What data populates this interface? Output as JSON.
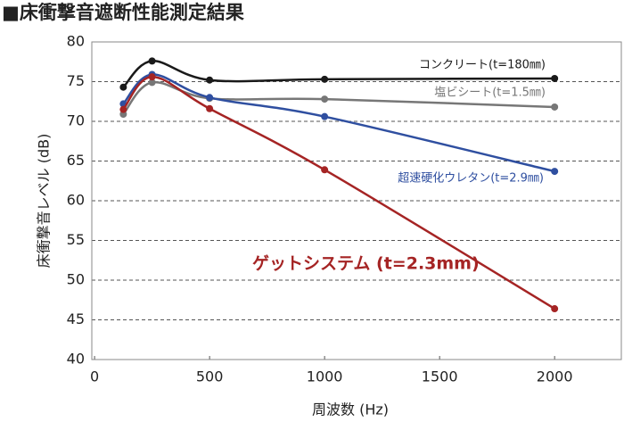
{
  "chart_data": {
    "type": "line",
    "title": "■床衝撃音遮断性能測定結果",
    "x_label": "周波数 (Hz)",
    "y_label": "床衝撃音レベル (dB)",
    "x": [
      125,
      250,
      500,
      1000,
      2000
    ],
    "xlim": [
      -12,
      2290
    ],
    "xticks": [
      0,
      500,
      1000,
      1500,
      2000
    ],
    "ylim": [
      40,
      80
    ],
    "yticks": [
      40,
      45,
      50,
      55,
      60,
      65,
      70,
      75,
      80
    ],
    "grid": true,
    "series": [
      {
        "name": "コンクリート(t=180㎜)",
        "color": "#1a1a1a",
        "values": [
          74.3,
          77.6,
          75.2,
          75.3,
          75.4
        ]
      },
      {
        "name": "塩ビシート(t=1.5㎜)",
        "color": "#777777",
        "values": [
          70.9,
          74.9,
          72.9,
          72.8,
          71.8
        ]
      },
      {
        "name": "超速硬化ウレタン(t=2.9㎜)",
        "color": "#2f4fa0",
        "values": [
          72.2,
          75.9,
          73.0,
          70.6,
          63.7
        ]
      },
      {
        "name": "ゲットシステム (t=2.3mm)",
        "color": "#a52424",
        "values": [
          71.5,
          75.6,
          71.6,
          63.9,
          46.4
        ]
      }
    ]
  }
}
